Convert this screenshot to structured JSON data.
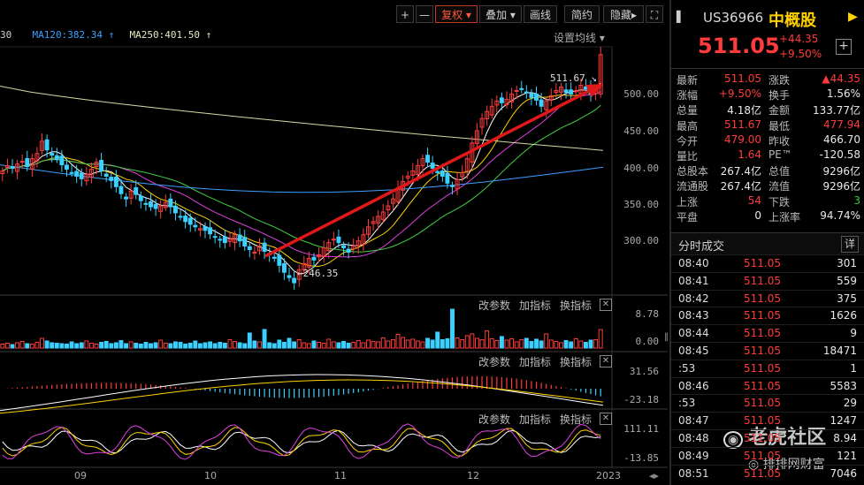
{
  "toolbar": {
    "plus": "+",
    "minus": "—",
    "fuquan": "复权",
    "diejia": "叠加",
    "huaxian": "画线",
    "jianyue": "简约",
    "yincang": "隐藏",
    "expand": "⛶"
  },
  "ma_bar": {
    "prefix": "30",
    "ma120": "MA120:382.34",
    "ma250": "MA250:401.50",
    "settings": "设置均线"
  },
  "price_axis": [
    "500.00",
    "450.00",
    "400.00",
    "350.00",
    "300.00"
  ],
  "annotations": {
    "high": "511.67",
    "low": "246.35"
  },
  "volume_axis": [
    "8.78",
    "0.00"
  ],
  "macd_axis": [
    "31.56",
    "-23.18"
  ],
  "kdj_axis": [
    "111.11",
    "-13.85"
  ],
  "panel_tools": {
    "change_param": "改参数",
    "add_indicator": "加指标",
    "switch_indicator": "换指标",
    "close": "✕"
  },
  "x_axis": [
    "09",
    "10",
    "11",
    "12",
    "2023"
  ],
  "watermark": {
    "main": "老虎社区",
    "sub": "排排网财富"
  },
  "quote": {
    "code": "US36966",
    "name": "中概股",
    "price": "511.05",
    "change": "+44.35",
    "change_pct": "+9.50%",
    "rows": [
      {
        "k": "最新",
        "v": "511.05",
        "vc": "red",
        "k2": "涨跌",
        "v2": "▲44.35",
        "v2c": "red"
      },
      {
        "k": "涨幅",
        "v": "+9.50%",
        "vc": "red",
        "k2": "换手",
        "v2": "1.56%",
        "v2c": "white"
      },
      {
        "k": "总量",
        "v": "4.18亿",
        "vc": "white",
        "k2": "金额",
        "v2": "133.77亿",
        "v2c": "white"
      },
      {
        "k": "最高",
        "v": "511.67",
        "vc": "red",
        "k2": "最低",
        "v2": "477.94",
        "v2c": "red"
      },
      {
        "k": "今开",
        "v": "479.00",
        "vc": "red",
        "k2": "昨收",
        "v2": "466.70",
        "v2c": "white"
      },
      {
        "k": "量比",
        "v": "1.64",
        "vc": "red",
        "k2": "PE™",
        "v2": "-120.58",
        "v2c": "white"
      },
      {
        "k": "总股本",
        "v": "267.4亿",
        "vc": "white",
        "k2": "总值",
        "v2": "9296亿",
        "v2c": "white"
      },
      {
        "k": "流通股",
        "v": "267.4亿",
        "vc": "white",
        "k2": "流值",
        "v2": "9296亿",
        "v2c": "white"
      },
      {
        "k": "上涨",
        "v": "54",
        "vc": "red",
        "k2": "下跌",
        "v2": "3",
        "v2c": "green"
      },
      {
        "k": "平盘",
        "v": "0",
        "vc": "white",
        "k2": "上涨率",
        "v2": "94.74%",
        "v2c": "white"
      }
    ]
  },
  "ticks": {
    "title": "分时成交",
    "detail": "详",
    "rows": [
      {
        "t": "08:40",
        "p": "511.05",
        "v": "301"
      },
      {
        "t": "08:41",
        "p": "511.05",
        "v": "559"
      },
      {
        "t": "08:42",
        "p": "511.05",
        "v": "375"
      },
      {
        "t": "08:43",
        "p": "511.05",
        "v": "1626"
      },
      {
        "t": "08:44",
        "p": "511.05",
        "v": "9"
      },
      {
        "t": "08:45",
        "p": "511.05",
        "v": "18471"
      },
      {
        "t": ":53",
        "p": "511.05",
        "v": "1"
      },
      {
        "t": "08:46",
        "p": "511.05",
        "v": "5583"
      },
      {
        "t": ":53",
        "p": "511.05",
        "v": "29"
      },
      {
        "t": "08:47",
        "p": "511.05",
        "v": "1247"
      },
      {
        "t": "08:48",
        "p": "511.05",
        "v": "8.94"
      },
      {
        "t": "08:49",
        "p": "511.05",
        "v": "121"
      },
      {
        "t": "08:51",
        "p": "511.05",
        "v": "7046"
      }
    ]
  },
  "chart_data": {
    "type": "candlestick",
    "ylim": [
      240,
      520
    ],
    "price_labels": [
      500,
      450,
      400,
      350,
      300
    ],
    "closes": [
      378,
      384,
      381,
      386,
      389,
      383,
      392,
      398,
      412,
      402,
      396,
      391,
      385,
      380,
      376,
      372,
      369,
      374,
      380,
      388,
      378,
      372,
      367,
      360,
      352,
      346,
      355,
      351,
      344,
      340,
      337,
      335,
      338,
      342,
      337,
      330,
      326,
      320,
      317,
      314,
      312,
      310,
      306,
      302,
      299,
      296,
      300,
      305,
      298,
      292,
      288,
      285,
      292,
      286,
      282,
      278,
      270,
      262,
      256,
      250,
      265,
      272,
      278,
      276,
      282,
      290,
      296,
      300,
      296,
      290,
      285,
      292,
      298,
      305,
      314,
      320,
      326,
      331,
      338,
      346,
      358,
      366,
      372,
      378,
      384,
      392,
      388,
      381,
      376,
      372,
      364,
      360,
      368,
      376,
      392,
      410,
      424,
      438,
      446,
      452,
      458,
      456,
      460,
      466,
      470,
      472,
      468,
      462,
      459,
      452,
      458,
      464,
      470,
      474,
      468,
      466,
      470,
      476,
      472,
      466,
      470,
      511.05
    ],
    "ma_series": [
      {
        "name": "MA250",
        "color": "#d8d8a8",
        "start": 475,
        "end": 401.5
      },
      {
        "name": "MA120",
        "color": "#3aa0ff",
        "start": 385,
        "end": 382.34
      }
    ],
    "volume": [
      0.9,
      1.1,
      0.8,
      1.2,
      1.5,
      1.0,
      0.9,
      1.3,
      2.2,
      1.6,
      1.2,
      1.1,
      1.0,
      0.9,
      1.4,
      1.0,
      1.2,
      1.6,
      1.1,
      0.9,
      1.3,
      1.5,
      1.0,
      1.2,
      1.7,
      1.0,
      1.4,
      1.1,
      0.9,
      1.3,
      1.0,
      1.2,
      1.8,
      1.1,
      1.0,
      1.4,
      1.3,
      0.9,
      1.1,
      1.6,
      1.0,
      1.2,
      1.4,
      1.0,
      1.3,
      1.1,
      1.9,
      1.5,
      1.2,
      1.0,
      3.4,
      1.6,
      1.4,
      4.2,
      1.2,
      1.0,
      1.8,
      1.3,
      2.2,
      1.4,
      1.9,
      1.2,
      1.0,
      1.6,
      1.3,
      1.1,
      2.0,
      1.4,
      1.2,
      1.5,
      1.1,
      1.3,
      1.7,
      1.2,
      1.8,
      1.5,
      1.4,
      2.3,
      1.6,
      1.9,
      3.1,
      2.4,
      1.8,
      2.0,
      1.6,
      1.4,
      2.2,
      1.8,
      3.6,
      1.9,
      2.1,
      8.78,
      2.3,
      1.9,
      2.8,
      3.2,
      2.2,
      1.9,
      3.9,
      2.1,
      1.7,
      2.6,
      1.8,
      2.1,
      1.4,
      1.9,
      2.2,
      1.5,
      2.0,
      1.6,
      3.2,
      1.8,
      1.5,
      1.2,
      1.7,
      1.4,
      2.1,
      1.6,
      1.3,
      1.8,
      1.9,
      4.18
    ]
  }
}
